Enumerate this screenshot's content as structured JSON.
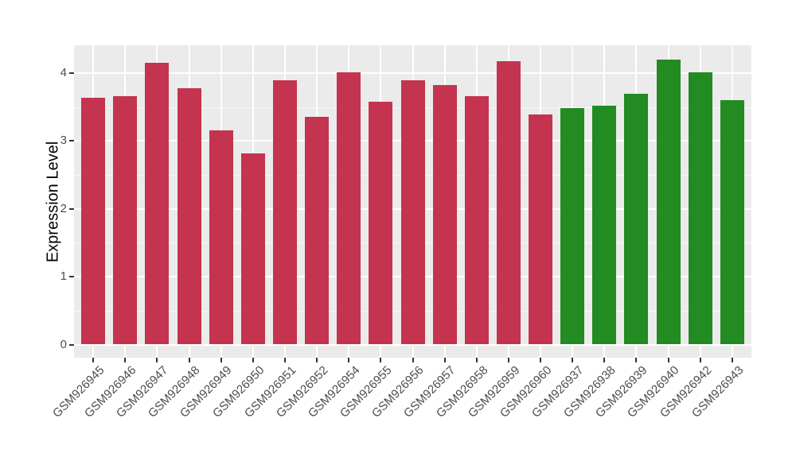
{
  "chart_data": {
    "type": "bar",
    "title": "",
    "xlabel": "",
    "ylabel": "Expression Level",
    "categories": [
      "GSM926945",
      "GSM926946",
      "GSM926947",
      "GSM926948",
      "GSM926949",
      "GSM926950",
      "GSM926951",
      "GSM926952",
      "GSM926954",
      "GSM926955",
      "GSM926956",
      "GSM926957",
      "GSM926958",
      "GSM926959",
      "GSM926960",
      "GSM926937",
      "GSM926938",
      "GSM926939",
      "GSM926940",
      "GSM926942",
      "GSM926943"
    ],
    "values": [
      3.63,
      3.66,
      4.15,
      3.78,
      3.16,
      2.82,
      3.89,
      3.35,
      4.01,
      3.58,
      3.89,
      3.82,
      3.66,
      4.18,
      3.39,
      3.48,
      3.52,
      3.7,
      4.2,
      4.01,
      3.6
    ],
    "groups": [
      "group1",
      "group1",
      "group1",
      "group1",
      "group1",
      "group1",
      "group1",
      "group1",
      "group1",
      "group1",
      "group1",
      "group1",
      "group1",
      "group1",
      "group1",
      "group2",
      "group2",
      "group2",
      "group2",
      "group2",
      "group2"
    ],
    "group_colors": {
      "group1": "#C4344F",
      "group2": "#228B22"
    },
    "yticks": [
      "0",
      "1",
      "2",
      "3",
      "4"
    ],
    "ylim": [
      0,
      4.41
    ],
    "grid": true,
    "legend": "none",
    "colors": {
      "panel_bg": "#EBEBEB",
      "grid": "#FFFFFF",
      "tick_mark": "#333333",
      "tick_label": "#4D4D4D",
      "axis_title": "#000000"
    }
  }
}
